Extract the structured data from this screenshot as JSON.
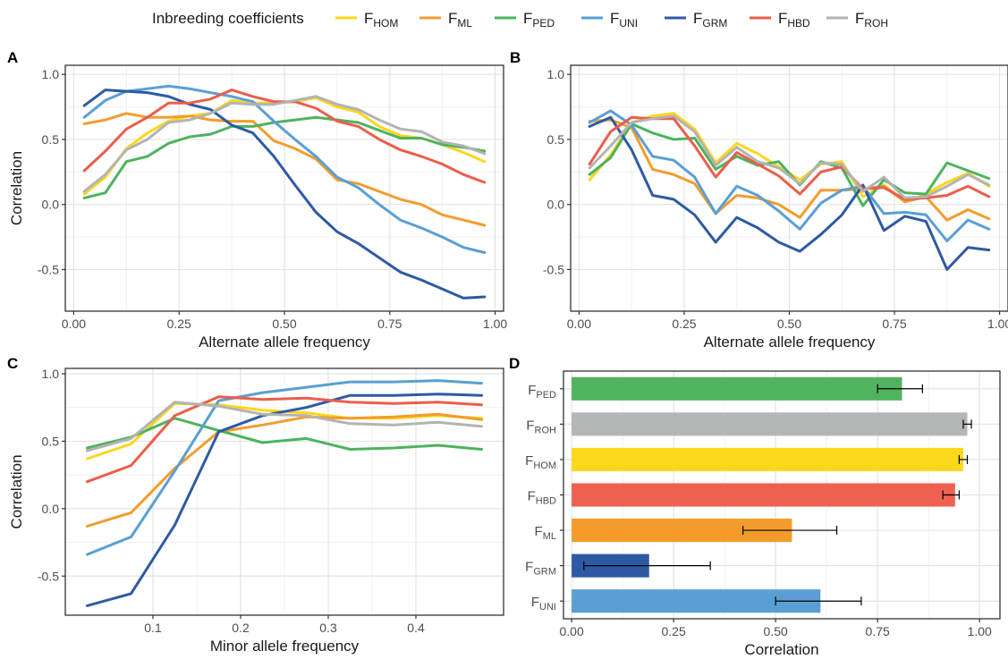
{
  "legend": {
    "title": "Inbreeding coefficients",
    "items": [
      {
        "main": "F",
        "sub": "HOM",
        "color": "#FDD61C"
      },
      {
        "main": "F",
        "sub": "ML",
        "color": "#F39C2C"
      },
      {
        "main": "F",
        "sub": "PED",
        "color": "#4DB35E"
      },
      {
        "main": "F",
        "sub": "UNI",
        "color": "#5A9FD4"
      },
      {
        "main": "F",
        "sub": "GRM",
        "color": "#2E5AA4"
      },
      {
        "main": "F",
        "sub": "HBD",
        "color": "#EA5E4A"
      },
      {
        "main": "F",
        "sub": "ROH",
        "color": "#B3B3B3"
      }
    ]
  },
  "chart_data": [
    {
      "panel": "A",
      "type": "line",
      "xlabel": "Alternate allele frequency",
      "ylabel": "Correlation",
      "xlim": [
        -0.02,
        1.02
      ],
      "ylim": [
        -0.82,
        1.07
      ],
      "xticks": [
        "0.00",
        "0.25",
        "0.50",
        "0.75",
        "1.00"
      ],
      "xtick_values": [
        0,
        0.25,
        0.5,
        0.75,
        1.0
      ],
      "yticks": [
        "-0.5",
        "0.0",
        "0.5",
        "1.0"
      ],
      "ytick_values": [
        -0.5,
        0,
        0.5,
        1.0
      ],
      "grid": true,
      "x": [
        0.025,
        0.075,
        0.125,
        0.175,
        0.225,
        0.275,
        0.325,
        0.375,
        0.425,
        0.475,
        0.525,
        0.575,
        0.625,
        0.675,
        0.725,
        0.775,
        0.825,
        0.875,
        0.925,
        0.975
      ],
      "series": [
        {
          "key": "HOM",
          "values": [
            0.08,
            0.21,
            0.43,
            0.55,
            0.64,
            0.68,
            0.7,
            0.8,
            0.78,
            0.78,
            0.79,
            0.82,
            0.75,
            0.71,
            0.6,
            0.53,
            0.51,
            0.46,
            0.4,
            0.33
          ]
        },
        {
          "key": "ML",
          "values": [
            0.62,
            0.65,
            0.7,
            0.67,
            0.67,
            0.68,
            0.65,
            0.64,
            0.64,
            0.49,
            0.43,
            0.35,
            0.19,
            0.16,
            0.1,
            0.04,
            0.0,
            -0.08,
            -0.12,
            -0.16
          ]
        },
        {
          "key": "PED",
          "values": [
            0.05,
            0.09,
            0.33,
            0.37,
            0.47,
            0.52,
            0.54,
            0.6,
            0.6,
            0.63,
            0.65,
            0.67,
            0.65,
            0.63,
            0.57,
            0.51,
            0.51,
            0.46,
            0.44,
            0.41
          ]
        },
        {
          "key": "UNI",
          "values": [
            0.67,
            0.8,
            0.87,
            0.89,
            0.91,
            0.89,
            0.86,
            0.83,
            0.79,
            0.64,
            0.5,
            0.37,
            0.21,
            0.13,
            0.0,
            -0.12,
            -0.18,
            -0.25,
            -0.33,
            -0.37
          ]
        },
        {
          "key": "GRM",
          "values": [
            0.76,
            0.88,
            0.87,
            0.86,
            0.83,
            0.77,
            0.73,
            0.61,
            0.55,
            0.37,
            0.15,
            -0.06,
            -0.21,
            -0.3,
            -0.41,
            -0.52,
            -0.58,
            -0.65,
            -0.72,
            -0.71
          ]
        },
        {
          "key": "HBD",
          "values": [
            0.26,
            0.41,
            0.58,
            0.67,
            0.78,
            0.78,
            0.81,
            0.88,
            0.83,
            0.79,
            0.79,
            0.74,
            0.64,
            0.6,
            0.5,
            0.42,
            0.37,
            0.31,
            0.23,
            0.17
          ]
        },
        {
          "key": "ROH",
          "values": [
            0.1,
            0.23,
            0.42,
            0.5,
            0.63,
            0.65,
            0.7,
            0.78,
            0.77,
            0.77,
            0.8,
            0.83,
            0.77,
            0.73,
            0.65,
            0.58,
            0.56,
            0.48,
            0.45,
            0.39
          ]
        }
      ]
    },
    {
      "panel": "B",
      "type": "line",
      "xlabel": "Alternate allele frequency",
      "ylabel": "",
      "xlim": [
        -0.02,
        1.02
      ],
      "ylim": [
        -0.82,
        1.07
      ],
      "xticks": [
        "0.00",
        "0.25",
        "0.50",
        "0.75",
        "1.00"
      ],
      "xtick_values": [
        0,
        0.25,
        0.5,
        0.75,
        1.0
      ],
      "yticks": [
        "-0.5",
        "0.0",
        "0.5",
        "1.0"
      ],
      "ytick_values": [
        -0.5,
        0,
        0.5,
        1.0
      ],
      "grid": true,
      "x": [
        0.025,
        0.075,
        0.125,
        0.175,
        0.225,
        0.275,
        0.325,
        0.375,
        0.425,
        0.475,
        0.525,
        0.575,
        0.625,
        0.675,
        0.725,
        0.775,
        0.825,
        0.875,
        0.925,
        0.975
      ],
      "series": [
        {
          "key": "HOM",
          "values": [
            0.19,
            0.38,
            0.63,
            0.68,
            0.7,
            0.58,
            0.32,
            0.47,
            0.39,
            0.29,
            0.19,
            0.31,
            0.33,
            0.06,
            0.15,
            0.02,
            0.08,
            0.17,
            0.24,
            0.14
          ]
        },
        {
          "key": "ML",
          "values": [
            0.64,
            0.65,
            0.59,
            0.27,
            0.23,
            0.16,
            -0.07,
            0.07,
            0.05,
            0.0,
            -0.1,
            0.11,
            0.11,
            0.12,
            0.14,
            0.02,
            0.06,
            -0.12,
            -0.04,
            -0.11
          ]
        },
        {
          "key": "PED",
          "values": [
            0.23,
            0.36,
            0.62,
            0.55,
            0.5,
            0.51,
            0.27,
            0.37,
            0.3,
            0.33,
            0.15,
            0.33,
            0.28,
            -0.01,
            0.19,
            0.09,
            0.08,
            0.32,
            0.26,
            0.2
          ]
        },
        {
          "key": "UNI",
          "values": [
            0.63,
            0.72,
            0.61,
            0.37,
            0.34,
            0.21,
            -0.07,
            0.14,
            0.07,
            -0.05,
            -0.19,
            0.01,
            0.11,
            0.14,
            -0.07,
            -0.06,
            -0.08,
            -0.28,
            -0.12,
            -0.19
          ]
        },
        {
          "key": "GRM",
          "values": [
            0.6,
            0.67,
            0.42,
            0.07,
            0.04,
            -0.08,
            -0.29,
            -0.1,
            -0.18,
            -0.29,
            -0.36,
            -0.23,
            -0.08,
            0.15,
            -0.2,
            -0.09,
            -0.13,
            -0.5,
            -0.33,
            -0.35
          ]
        },
        {
          "key": "HBD",
          "values": [
            0.31,
            0.56,
            0.67,
            0.66,
            0.66,
            0.45,
            0.21,
            0.4,
            0.31,
            0.22,
            0.08,
            0.25,
            0.29,
            0.12,
            0.13,
            0.04,
            0.05,
            0.07,
            0.14,
            0.06
          ]
        },
        {
          "key": "ROH",
          "values": [
            0.28,
            0.45,
            0.63,
            0.66,
            0.68,
            0.56,
            0.3,
            0.44,
            0.33,
            0.28,
            0.16,
            0.32,
            0.31,
            0.1,
            0.21,
            0.05,
            0.06,
            0.14,
            0.23,
            0.15
          ]
        }
      ]
    },
    {
      "panel": "C",
      "type": "line",
      "xlabel": "Minor allele frequency",
      "ylabel": "Correlation",
      "xlim": [
        0.0,
        0.5
      ],
      "ylim": [
        -0.79,
        1.04
      ],
      "xticks": [
        "0.1",
        "0.2",
        "0.3",
        "0.4"
      ],
      "xtick_values": [
        0.1,
        0.2,
        0.3,
        0.4
      ],
      "yticks": [
        "-0.5",
        "0.0",
        "0.5",
        "1.0"
      ],
      "ytick_values": [
        -0.5,
        0,
        0.5,
        1.0
      ],
      "grid": true,
      "x": [
        0.025,
        0.075,
        0.125,
        0.175,
        0.225,
        0.275,
        0.325,
        0.375,
        0.425,
        0.475
      ],
      "series": [
        {
          "key": "HOM",
          "values": [
            0.37,
            0.48,
            0.78,
            0.77,
            0.73,
            0.71,
            0.67,
            0.67,
            0.69,
            0.67
          ]
        },
        {
          "key": "ML",
          "values": [
            -0.13,
            -0.03,
            0.3,
            0.57,
            0.62,
            0.68,
            0.67,
            0.68,
            0.7,
            0.66
          ]
        },
        {
          "key": "PED",
          "values": [
            0.45,
            0.53,
            0.67,
            0.58,
            0.49,
            0.52,
            0.44,
            0.45,
            0.47,
            0.44
          ]
        },
        {
          "key": "UNI",
          "values": [
            -0.34,
            -0.21,
            0.28,
            0.8,
            0.86,
            0.9,
            0.94,
            0.94,
            0.95,
            0.93
          ]
        },
        {
          "key": "GRM",
          "values": [
            -0.72,
            -0.63,
            -0.12,
            0.57,
            0.69,
            0.75,
            0.84,
            0.84,
            0.85,
            0.84
          ]
        },
        {
          "key": "HBD",
          "values": [
            0.2,
            0.32,
            0.69,
            0.83,
            0.81,
            0.82,
            0.79,
            0.78,
            0.79,
            0.77
          ]
        },
        {
          "key": "ROH",
          "values": [
            0.43,
            0.52,
            0.79,
            0.76,
            0.7,
            0.69,
            0.63,
            0.62,
            0.64,
            0.61
          ]
        }
      ]
    },
    {
      "panel": "D",
      "type": "bar",
      "orientation": "horizontal",
      "xlabel": "Correlation",
      "ylabel": "",
      "xlim": [
        -0.02,
        1.05
      ],
      "xticks": [
        "0.00",
        "0.25",
        "0.50",
        "0.75",
        "1.00"
      ],
      "xtick_values": [
        0,
        0.25,
        0.5,
        0.75,
        1.0
      ],
      "grid": true,
      "bars": [
        {
          "key": "PED",
          "label_main": "F",
          "label_sub": "PED",
          "value": 0.81,
          "err_low": 0.75,
          "err_high": 0.86
        },
        {
          "key": "ROH",
          "label_main": "F",
          "label_sub": "ROH",
          "value": 0.97,
          "err_low": 0.96,
          "err_high": 0.98
        },
        {
          "key": "HOM",
          "label_main": "F",
          "label_sub": "HOM",
          "value": 0.96,
          "err_low": 0.95,
          "err_high": 0.97
        },
        {
          "key": "HBD",
          "label_main": "F",
          "label_sub": "HBD",
          "value": 0.94,
          "err_low": 0.91,
          "err_high": 0.95
        },
        {
          "key": "ML",
          "label_main": "F",
          "label_sub": "ML",
          "value": 0.54,
          "err_low": 0.42,
          "err_high": 0.65
        },
        {
          "key": "GRM",
          "label_main": "F",
          "label_sub": "GRM",
          "value": 0.19,
          "err_low": 0.03,
          "err_high": 0.34
        },
        {
          "key": "UNI",
          "label_main": "F",
          "label_sub": "UNI",
          "value": 0.61,
          "err_low": 0.5,
          "err_high": 0.71
        }
      ],
      "bar_colors": {
        "PED": "#52B35F",
        "ROH": "#B4B6B6",
        "HOM": "#FDD71C",
        "HBD": "#EE6150",
        "ML": "#F39C2C",
        "GRM": "#2E5AA4",
        "UNI": "#5A9FD4"
      }
    }
  ]
}
